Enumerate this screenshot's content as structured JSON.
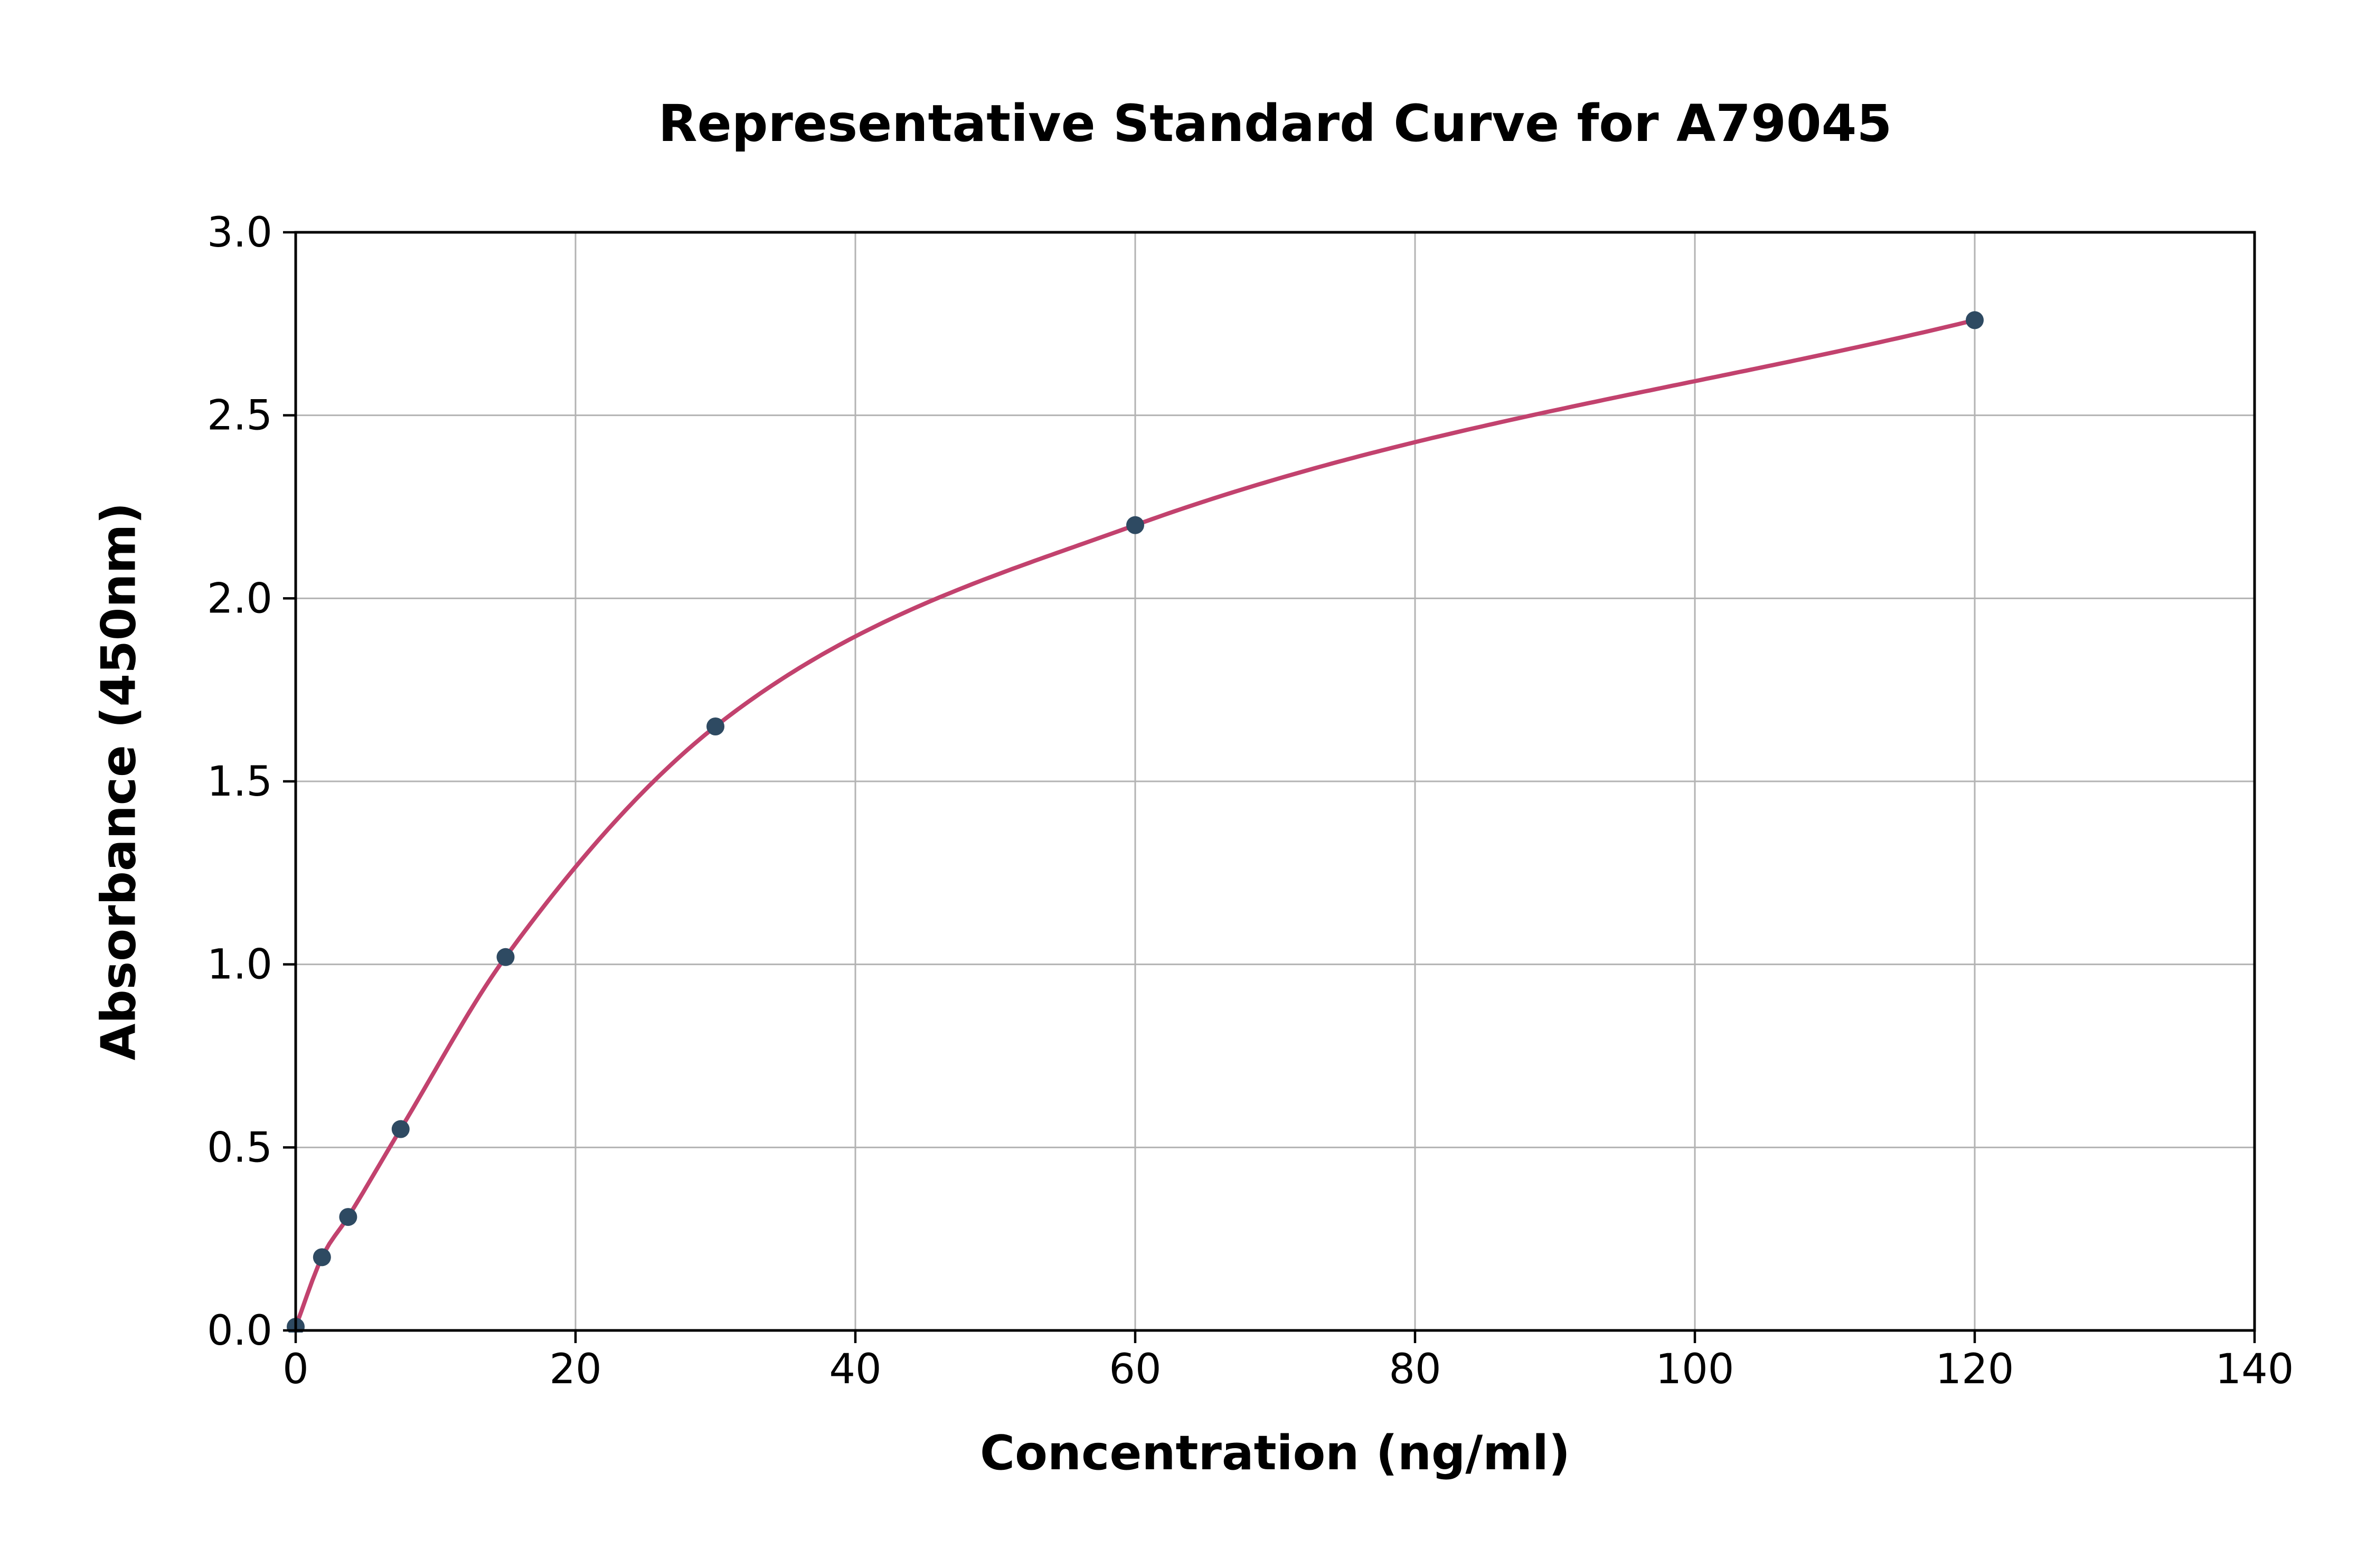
{
  "chart_data": {
    "type": "scatter",
    "title": "Representative Standard Curve for A79045",
    "xlabel": "Concentration (ng/ml)",
    "ylabel": "Absorbance (450nm)",
    "xlim": [
      0,
      140
    ],
    "ylim": [
      0,
      3.0
    ],
    "xticks": [
      0,
      20,
      40,
      60,
      80,
      100,
      120,
      140
    ],
    "yticks": [
      0.0,
      0.5,
      1.0,
      1.5,
      2.0,
      2.5,
      3.0
    ],
    "grid": true,
    "legend": "none",
    "points": [
      {
        "x": 0,
        "y": 0.01
      },
      {
        "x": 1.88,
        "y": 0.2
      },
      {
        "x": 3.75,
        "y": 0.31
      },
      {
        "x": 7.5,
        "y": 0.55
      },
      {
        "x": 15,
        "y": 1.02
      },
      {
        "x": 30,
        "y": 1.65
      },
      {
        "x": 60,
        "y": 2.2
      },
      {
        "x": 120,
        "y": 2.76
      }
    ],
    "curve_color": "#c2426e",
    "point_color": "#2e4a62",
    "grid_color": "#b3b3b3",
    "axis_color": "#000000"
  }
}
